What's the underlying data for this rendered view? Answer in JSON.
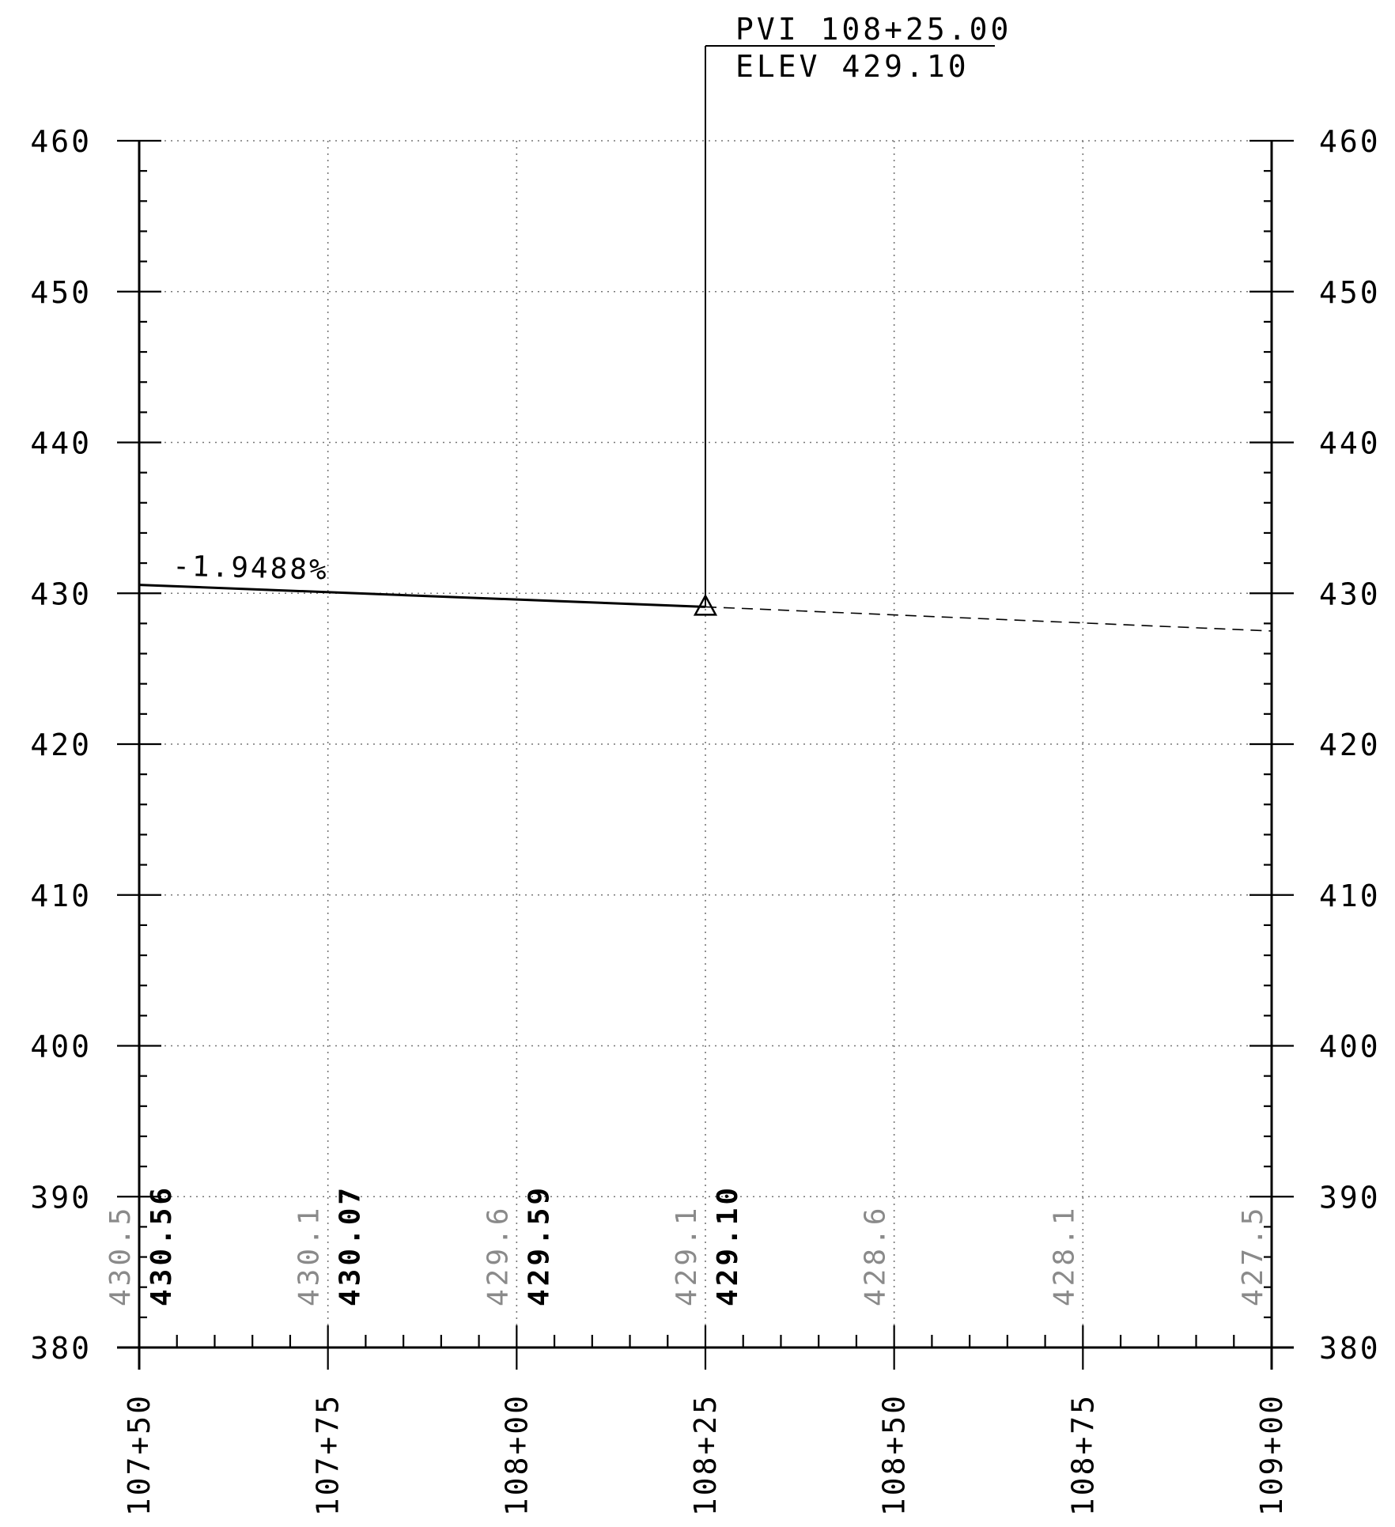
{
  "chart_data": {
    "type": "line",
    "title": "",
    "xlabel": "",
    "ylabel": "",
    "xlim": [
      10750,
      10900
    ],
    "ylim": [
      380,
      460
    ],
    "y_ticks": [
      380,
      390,
      400,
      410,
      420,
      430,
      440,
      450,
      460
    ],
    "y_tick_labels": [
      "380",
      "390",
      "400",
      "410",
      "420",
      "430",
      "440",
      "450",
      "460"
    ],
    "x_ticks": [
      10750,
      10775,
      10800,
      10825,
      10850,
      10875,
      10900
    ],
    "x_tick_labels": [
      "107+50",
      "107+75",
      "108+00",
      "108+25",
      "108+50",
      "108+75",
      "109+00"
    ],
    "grid": true,
    "series": [
      {
        "style": "solid",
        "x": [
          10750,
          10825
        ],
        "y": [
          430.56,
          429.1
        ]
      },
      {
        "style": "dashed",
        "x": [
          10825,
          10900
        ],
        "y": [
          429.1,
          427.5
        ]
      }
    ],
    "grade_label": "-1.9488%",
    "pvi": {
      "station": 10825,
      "elevation": 429.1,
      "line1": "PVI 108+25.00",
      "line2": "ELEV 429.10"
    },
    "elevation_labels": [
      {
        "station": 10750,
        "existing": "430.5",
        "proposed": "430.56"
      },
      {
        "station": 10775,
        "existing": "430.1",
        "proposed": "430.07"
      },
      {
        "station": 10800,
        "existing": "429.6",
        "proposed": "429.59"
      },
      {
        "station": 10825,
        "existing": "429.1",
        "proposed": "429.10"
      },
      {
        "station": 10850,
        "existing": "428.6",
        "proposed": ""
      },
      {
        "station": 10875,
        "existing": "428.1",
        "proposed": ""
      },
      {
        "station": 10900,
        "existing": "427.5",
        "proposed": ""
      }
    ]
  }
}
